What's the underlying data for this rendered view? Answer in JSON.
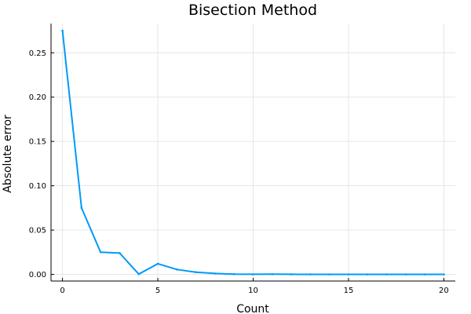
{
  "chart_data": {
    "type": "line",
    "title": "Bisection Method",
    "xlabel": "Count",
    "ylabel": "Absolute error",
    "xlim": [
      -0.6,
      20.6
    ],
    "ylim": [
      -0.0075,
      0.283
    ],
    "xticks": [
      0,
      5,
      10,
      15,
      20
    ],
    "xtick_labels": [
      "0",
      "5",
      "10",
      "15",
      "20"
    ],
    "yticks": [
      0.0,
      0.05,
      0.1,
      0.15,
      0.2,
      0.25
    ],
    "ytick_labels": [
      "0.00",
      "0.05",
      "0.10",
      "0.15",
      "0.20",
      "0.25"
    ],
    "grid": true,
    "legend": "none",
    "series": [
      {
        "color": "#009af9",
        "x": [
          0,
          1,
          2,
          3,
          4,
          5,
          6,
          7,
          8,
          9,
          10,
          11,
          12,
          13,
          14,
          15,
          16,
          17,
          18,
          19,
          20
        ],
        "y": [
          0.275,
          0.075,
          0.025,
          0.024,
          0.0003,
          0.012,
          0.0055,
          0.0025,
          0.001,
          0.0003,
          0.0001,
          0.0002,
          0.0001,
          5e-05,
          3e-05,
          2e-05,
          1e-05,
          5e-06,
          3e-06,
          2e-06,
          1e-06
        ]
      }
    ]
  }
}
